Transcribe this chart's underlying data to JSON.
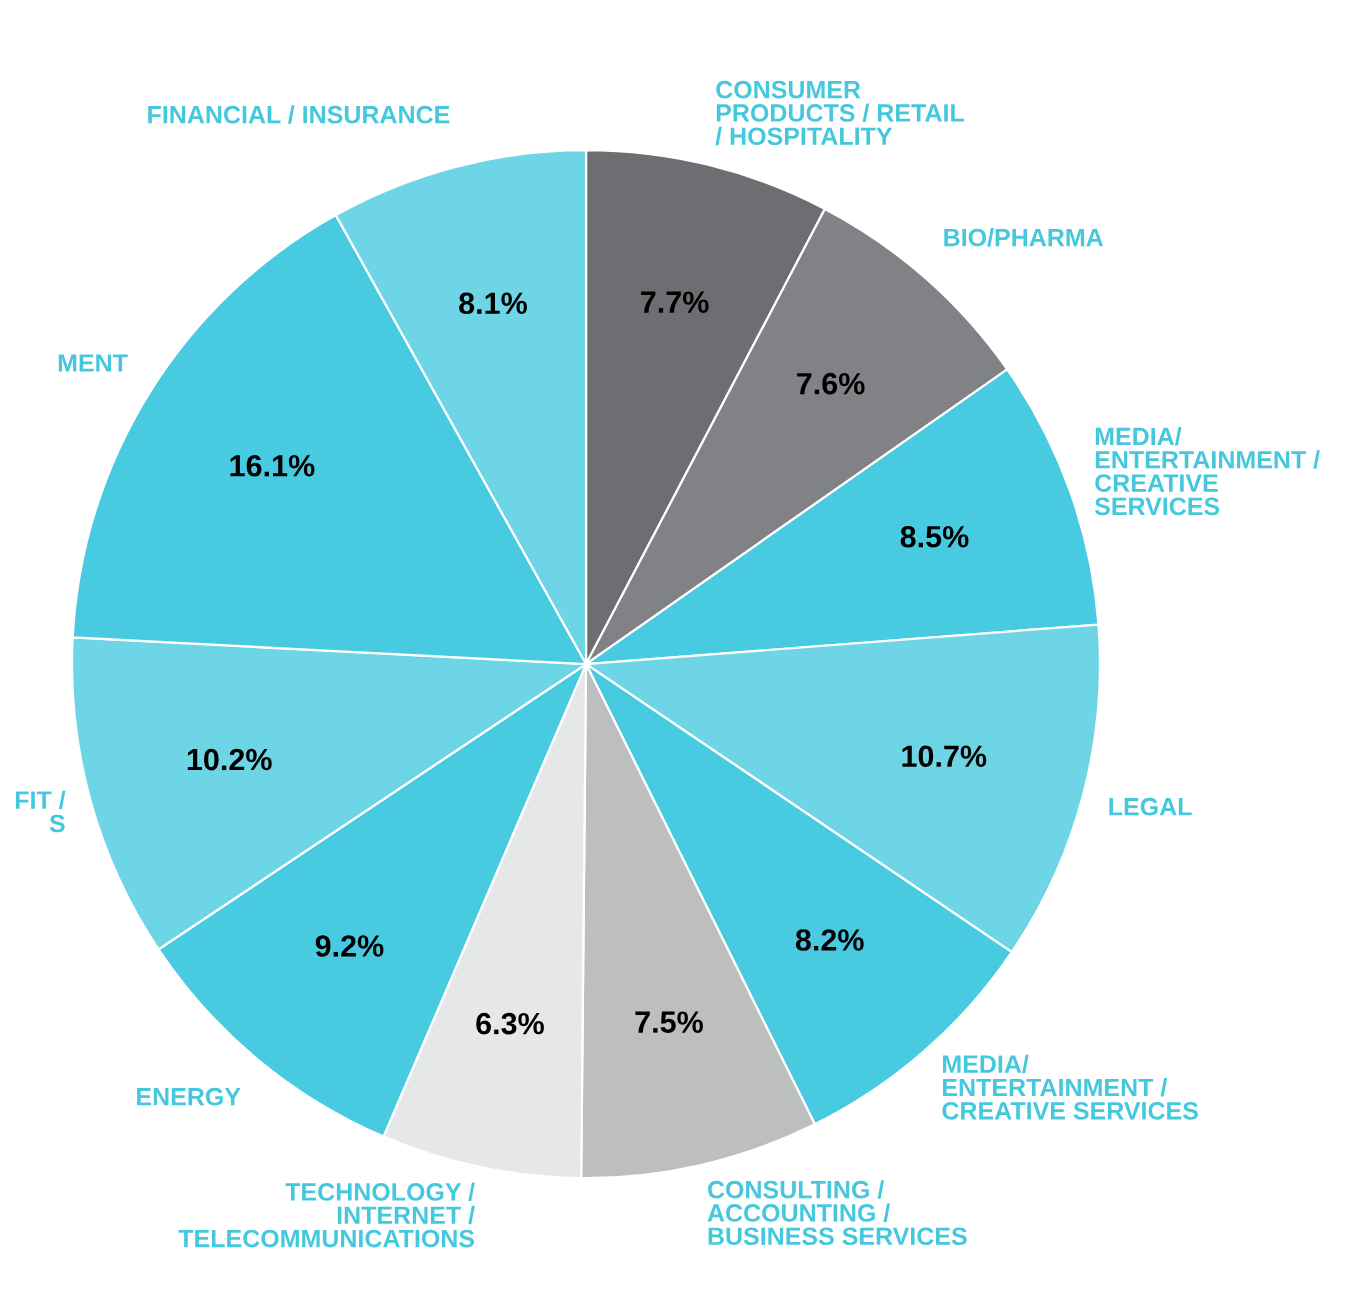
{
  "chart_data": {
    "type": "pie",
    "categories": [
      "CONSUMER\nPRODUCTS / RETAIL\n/ HOSPITALITY",
      "BIO/PHARMA",
      "MEDIA/\nENTERTAINMENT /\nCREATIVE\nSERVICES",
      "LEGAL",
      "MEDIA/\nENTERTAINMENT /\nCREATIVE SERVICES",
      "CONSULTING /\nACCOUNTING /\nBUSINESS SERVICES",
      "TECHNOLOGY /\nINTERNET /\nTELECOMMUNICATIONS",
      "ENERGY",
      "FIT /\nS",
      "MENT",
      "FINANCIAL / INSURANCE"
    ],
    "values": [
      7.7,
      7.6,
      8.5,
      10.7,
      8.2,
      7.5,
      6.3,
      9.2,
      10.2,
      16.1,
      8.1
    ],
    "colors": [
      "#6d6e71",
      "#808285",
      "#48cbe0",
      "#6dd5e6",
      "#48cbe0",
      "#bcbec0",
      "#e6e7e8",
      "#48cbe0",
      "#6dd5e6",
      "#48cbe0",
      "#6dd5e6"
    ],
    "value_labels": [
      "7.7%",
      "7.6%",
      "8.5%",
      "10.7%",
      "8.2%",
      "7.5%",
      "6.3%",
      "9.2%",
      "10.2%",
      "16.1%",
      "8.1%"
    ]
  }
}
